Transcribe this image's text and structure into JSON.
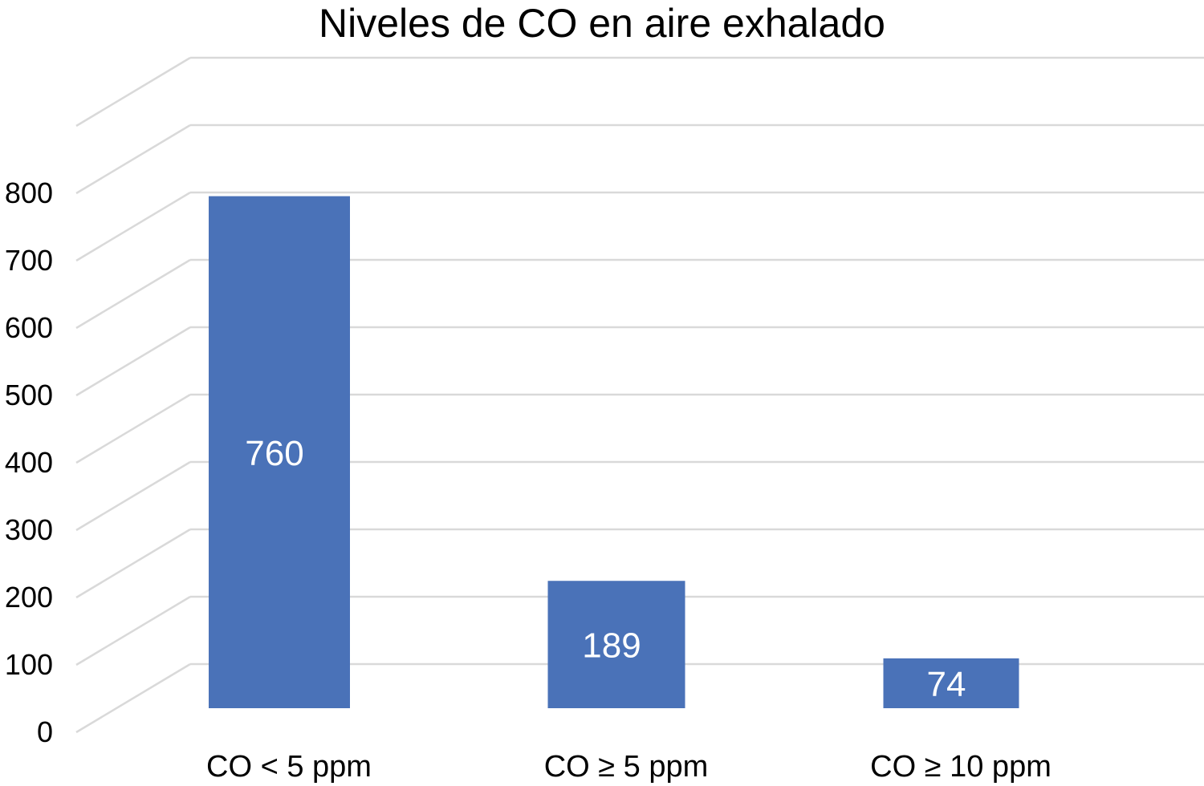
{
  "chart_data": {
    "type": "bar",
    "title": "Niveles de CO en aire exhalado",
    "categories": [
      "CO < 5 ppm",
      "CO ≥ 5 ppm",
      "CO ≥ 10 ppm"
    ],
    "values": [
      760,
      189,
      74
    ],
    "data_labels": [
      "760",
      "189",
      "74"
    ],
    "ylim": [
      0,
      800
    ],
    "yticks": [
      0,
      100,
      200,
      300,
      400,
      500,
      600,
      700,
      800
    ],
    "ytick_labels": [
      "0",
      "100",
      "200",
      "300",
      "400",
      "500",
      "600",
      "700",
      "800"
    ],
    "xlabel": "",
    "ylabel": "",
    "grid": true,
    "style": "3d-perspective",
    "colors": {
      "bar": "#4A72B8",
      "grid": "#D9D9D9",
      "data_label": "#FFFFFF"
    }
  }
}
